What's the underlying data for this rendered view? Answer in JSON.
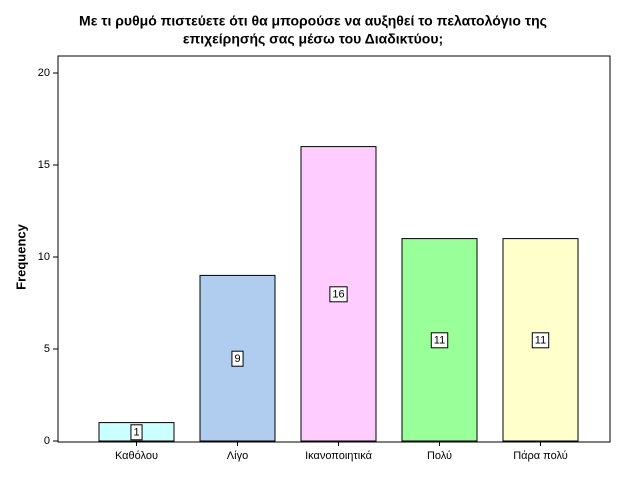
{
  "chart_data": {
    "type": "bar",
    "title": [
      "Με τι ρυθμό πιστεύετε ότι θα μπορούσε να αυξηθεί το πελατολόγιο της",
      "επιχείρησής σας μέσω του Διαδικτύου;"
    ],
    "y_label": "Frequency",
    "categories": [
      "Καθόλου",
      "Λίγο",
      "Ικανοποιητικά",
      "Πολύ",
      "Πάρα πολύ"
    ],
    "values": [
      1,
      9,
      16,
      11,
      11
    ],
    "colors": [
      "#ccffff",
      "#b0cdf0",
      "#ffccff",
      "#99ff99",
      "#ffffcc"
    ],
    "ylim": [
      0,
      20
    ],
    "yticks": [
      0,
      5,
      10,
      15,
      20
    ],
    "grid": false
  }
}
